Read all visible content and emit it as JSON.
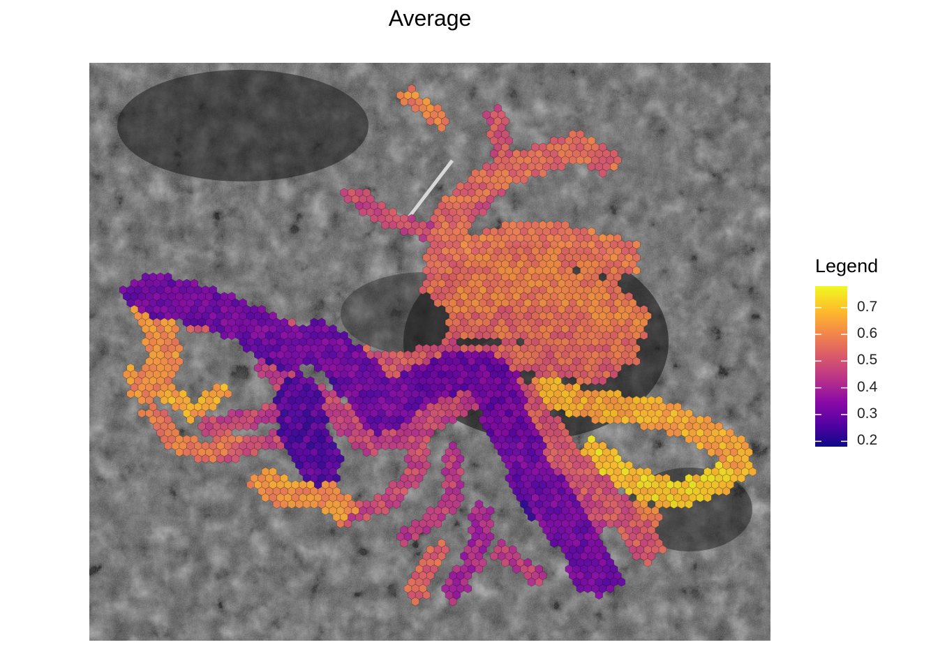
{
  "title": "Average",
  "legend": {
    "title": "Legend",
    "ticks": [
      "0.7",
      "0.6",
      "0.5",
      "0.4",
      "0.3",
      "0.2"
    ],
    "tick_values": [
      0.7,
      0.6,
      0.5,
      0.4,
      0.3,
      0.2
    ],
    "range": [
      0.18,
      0.78
    ],
    "colormap": [
      "#0d0887",
      "#5302a3",
      "#8b0aa5",
      "#b83289",
      "#db5c68",
      "#f48849",
      "#febd2a",
      "#f0f921"
    ]
  },
  "map": {
    "basemap": "grayscale satellite imagery",
    "overlay": "hexagonal bins colored by average value",
    "background_color": "#3a3a3a"
  }
}
